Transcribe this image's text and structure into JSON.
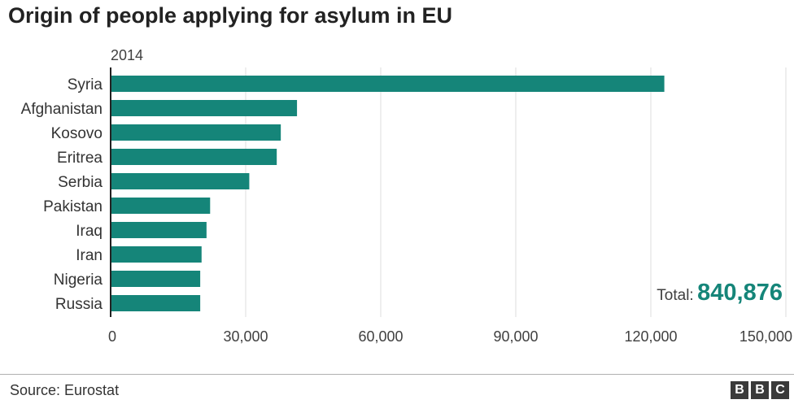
{
  "chart_data": {
    "type": "bar",
    "orientation": "horizontal",
    "title": "Origin of people applying for asylum in EU",
    "subtitle": "2014",
    "categories": [
      "Syria",
      "Afghanistan",
      "Kosovo",
      "Eritrea",
      "Serbia",
      "Pakistan",
      "Iraq",
      "Iran",
      "Nigeria",
      "Russia"
    ],
    "values": [
      123000,
      41400,
      37800,
      36900,
      30800,
      22100,
      21300,
      20200,
      19900,
      19900
    ],
    "xlim": [
      0,
      150000
    ],
    "xticks": [
      0,
      30000,
      60000,
      90000,
      120000,
      150000
    ],
    "xtick_labels": [
      "0",
      "30,000",
      "60,000",
      "90,000",
      "120,000",
      "150,000"
    ],
    "grid": true,
    "bar_color": "#158579",
    "annotation": {
      "label": "Total:",
      "value": "840,876",
      "color": "#158579"
    }
  },
  "footer": {
    "source": "Source: Eurostat",
    "logo_letters": [
      "B",
      "B",
      "C"
    ]
  }
}
